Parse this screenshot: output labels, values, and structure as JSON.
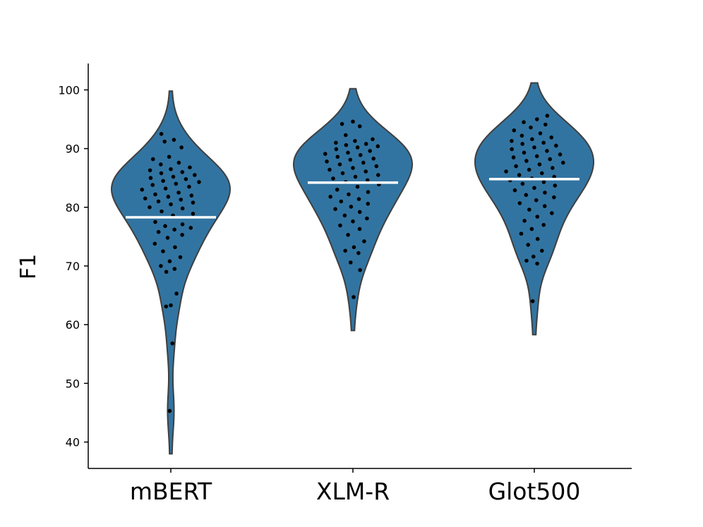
{
  "chart_data": {
    "type": "violin",
    "title": "",
    "xlabel": "",
    "ylabel": "F1",
    "ylim": [
      35.5,
      104.5
    ],
    "yticks": [
      "40",
      "50",
      "60",
      "70",
      "80",
      "90",
      "100"
    ],
    "grid": false,
    "legend": "none",
    "fill_color": "#3274a1",
    "outline_color": "#3f3f3f",
    "mean_line_color": "#ffffff",
    "point_color": "#000000",
    "categories": [
      "mBERT",
      "XLM-R",
      "Glot500"
    ],
    "series": [
      {
        "name": "mBERT",
        "mean": 78.3,
        "range": [
          38,
          99.8
        ],
        "points": [
          92.5,
          91.5,
          91.2,
          90.2,
          88.6,
          88.2,
          87.6,
          87.3,
          86.8,
          86.5,
          86.3,
          86.0,
          85.8,
          85.5,
          85.2,
          85.0,
          84.8,
          84.5,
          84.3,
          84.0,
          83.8,
          83.5,
          83.2,
          83.0,
          82.5,
          82.2,
          82.0,
          81.8,
          81.5,
          81.3,
          81.0,
          80.8,
          80.5,
          80.0,
          79.8,
          79.3,
          78.9,
          78.6,
          77.5,
          77.1,
          76.8,
          76.5,
          76.2,
          75.8,
          75.3,
          74.8,
          73.8,
          73.2,
          72.5,
          71.5,
          70.8,
          70.0,
          69.5,
          69.0,
          65.3,
          63.3,
          63.1,
          56.8,
          45.3
        ]
      },
      {
        "name": "XLM-R",
        "mean": 84.2,
        "range": [
          59,
          100.2
        ],
        "points": [
          94.6,
          94.2,
          93.8,
          92.3,
          91.6,
          91.3,
          91.0,
          90.8,
          90.6,
          90.4,
          90.2,
          89.9,
          89.6,
          89.3,
          89.1,
          88.9,
          88.6,
          88.3,
          88.1,
          87.8,
          87.6,
          87.3,
          87.0,
          86.7,
          86.4,
          86.1,
          85.8,
          85.5,
          85.2,
          84.9,
          84.6,
          84.3,
          83.9,
          83.5,
          83.0,
          82.6,
          82.2,
          81.8,
          81.4,
          81.0,
          80.6,
          80.1,
          79.7,
          79.2,
          78.6,
          78.1,
          77.6,
          76.9,
          76.3,
          75.3,
          74.2,
          73.2,
          72.6,
          72.2,
          70.6,
          69.3,
          64.7
        ]
      },
      {
        "name": "Glot500",
        "mean": 84.8,
        "range": [
          58.3,
          101.2
        ],
        "points": [
          95.6,
          95.0,
          94.5,
          94.1,
          93.6,
          93.1,
          92.6,
          92.2,
          91.9,
          91.6,
          91.3,
          91.0,
          90.8,
          90.5,
          90.2,
          89.9,
          89.6,
          89.3,
          89.0,
          88.7,
          88.5,
          88.2,
          87.9,
          87.6,
          87.3,
          87.0,
          86.7,
          86.4,
          86.1,
          85.8,
          85.5,
          85.2,
          84.9,
          84.6,
          84.3,
          84.0,
          83.7,
          83.3,
          82.9,
          82.5,
          82.1,
          81.7,
          81.2,
          80.7,
          80.2,
          79.6,
          79.0,
          78.4,
          77.7,
          77.0,
          76.3,
          75.5,
          74.6,
          73.6,
          72.6,
          71.6,
          70.9,
          70.4,
          64.0
        ]
      }
    ]
  }
}
